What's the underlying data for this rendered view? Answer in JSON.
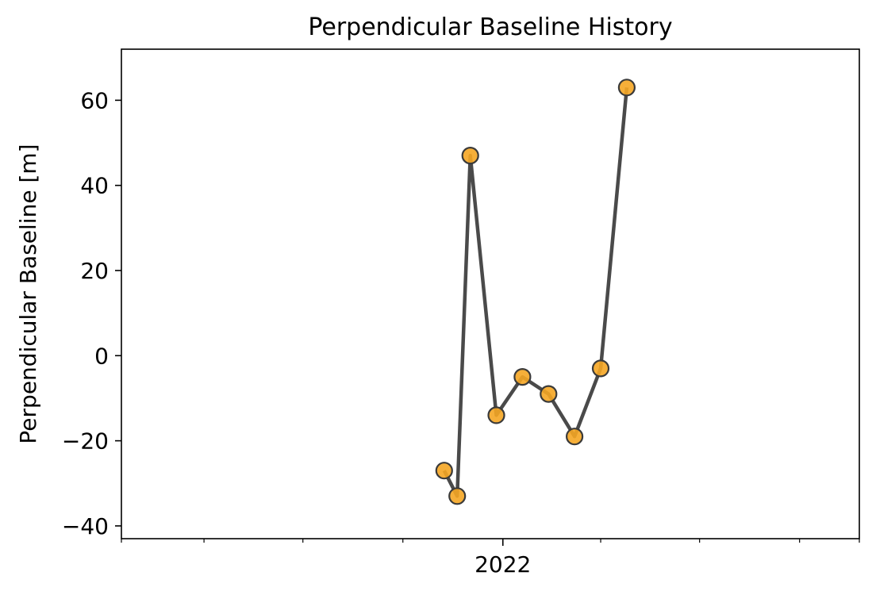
{
  "chart_data": {
    "type": "line",
    "title": "Perpendicular Baseline History",
    "xlabel": "",
    "ylabel": "Perpendicular Baseline [m]",
    "x_tick_labels": [
      "2022"
    ],
    "y_ticks": [
      -40,
      -20,
      0,
      20,
      40,
      60
    ],
    "y_tick_labels": [
      "−40",
      "−20",
      "0",
      "20",
      "40",
      "60"
    ],
    "ylim": [
      -43,
      72
    ],
    "grid": false,
    "legend": "none",
    "line_color": "#4a4a4a",
    "marker_color": "#f5a623",
    "marker_edge_color": "#3a3a3a",
    "series": [
      {
        "x": [
          "2021-11-08",
          "2021-11-20",
          "2021-12-02",
          "2021-12-26",
          "2022-01-19",
          "2022-02-12",
          "2022-03-08",
          "2022-04-01",
          "2022-04-25"
        ],
        "y": [
          -27,
          -33,
          47,
          -14,
          -5,
          -9,
          -19,
          -3,
          63
        ]
      }
    ]
  }
}
